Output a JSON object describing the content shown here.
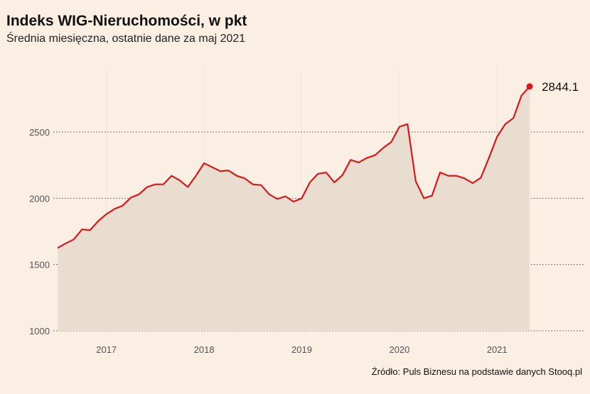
{
  "header": {
    "title": "Indeks WIG-Nieruchomości, w pkt",
    "subtitle": "Średnia miesięczna, ostatnie dane za maj 2021"
  },
  "footer": {
    "source": "Źródło: Puls Biznesu na podstawie danych Stooq.pl"
  },
  "colors": {
    "background": "#fbeee3",
    "line": "#d7191c",
    "area": "#e9ddd0",
    "grid": "#777777"
  },
  "chart_data": {
    "type": "area",
    "title": "Indeks WIG-Nieruchomości, w pkt",
    "subtitle": "Średnia miesięczna, ostatnie dane za maj 2021",
    "xlabel": "",
    "ylabel": "",
    "ylim": [
      1000,
      2900
    ],
    "yticks": [
      1000,
      1500,
      2000,
      2500
    ],
    "xticks": [
      "2017",
      "2018",
      "2019",
      "2020",
      "2021"
    ],
    "x_start": "2016-07",
    "x_end": "2021-05",
    "grid": "horizontal dotted",
    "legend": "none",
    "end_label": "2844.1",
    "series": [
      {
        "name": "",
        "x": [
          "2016-07",
          "2016-08",
          "2016-09",
          "2016-10",
          "2016-11",
          "2016-12",
          "2017-01",
          "2017-02",
          "2017-03",
          "2017-04",
          "2017-05",
          "2017-06",
          "2017-07",
          "2017-08",
          "2017-09",
          "2017-10",
          "2017-11",
          "2017-12",
          "2018-01",
          "2018-02",
          "2018-03",
          "2018-04",
          "2018-05",
          "2018-06",
          "2018-07",
          "2018-08",
          "2018-09",
          "2018-10",
          "2018-11",
          "2018-12",
          "2019-01",
          "2019-02",
          "2019-03",
          "2019-04",
          "2019-05",
          "2019-06",
          "2019-07",
          "2019-08",
          "2019-09",
          "2019-10",
          "2019-11",
          "2019-12",
          "2020-01",
          "2020-02",
          "2020-03",
          "2020-04",
          "2020-05",
          "2020-06",
          "2020-07",
          "2020-08",
          "2020-09",
          "2020-10",
          "2020-11",
          "2020-12",
          "2021-01",
          "2021-02",
          "2021-03",
          "2021-04",
          "2021-05"
        ],
        "values": [
          1625,
          1660,
          1690,
          1765,
          1760,
          1830,
          1880,
          1920,
          1945,
          2005,
          2030,
          2085,
          2105,
          2105,
          2170,
          2135,
          2085,
          2170,
          2265,
          2235,
          2205,
          2210,
          2170,
          2150,
          2105,
          2100,
          2030,
          1995,
          2015,
          1975,
          2000,
          2120,
          2185,
          2195,
          2120,
          2175,
          2290,
          2270,
          2305,
          2325,
          2380,
          2425,
          2540,
          2560,
          2130,
          2000,
          2020,
          2195,
          2170,
          2170,
          2150,
          2115,
          2155,
          2305,
          2465,
          2560,
          2605,
          2775,
          2844.1
        ]
      }
    ]
  }
}
